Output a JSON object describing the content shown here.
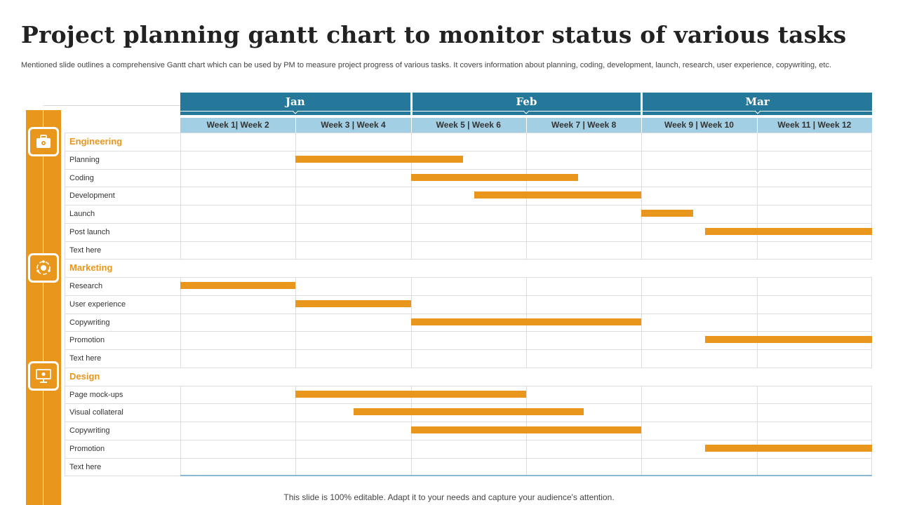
{
  "title": "Project planning gantt chart to monitor status of various tasks",
  "subtitle": "Mentioned slide outlines a comprehensive Gantt chart which can be used by PM to measure project progress of various tasks. It covers information about planning, coding, development, launch, research, user experience, copywriting, etc.",
  "footer": "This slide is 100% editable. Adapt it to your needs and capture your audience's attention.",
  "colors": {
    "accent": "#E9961D",
    "month_header": "#25789A",
    "week_header": "#A2CFE3"
  },
  "icons": [
    "briefcase-icon",
    "marketing-cycle-icon",
    "monitor-design-icon"
  ],
  "chart_data": {
    "type": "gantt",
    "months": [
      "Jan",
      "Feb",
      "Mar"
    ],
    "weeks": [
      "Week 1| Week 2",
      "Week 3 | Week 4",
      "Week 5 | Week 6",
      "Week 7 | Week 8",
      "Week 9 | Week 10",
      "Week 11 | Week 12"
    ],
    "week_range": [
      0,
      12
    ],
    "groups": [
      {
        "name": "Engineering",
        "tasks": [
          {
            "name": "Planning",
            "start": 2,
            "end": 4.9
          },
          {
            "name": "Coding",
            "start": 4,
            "end": 6.9
          },
          {
            "name": "Development",
            "start": 5.1,
            "end": 8
          },
          {
            "name": "Launch",
            "start": 8,
            "end": 8.9
          },
          {
            "name": "Post launch",
            "start": 9.1,
            "end": 12
          },
          {
            "name": "Text here",
            "start": null,
            "end": null
          }
        ]
      },
      {
        "name": "Marketing",
        "tasks": [
          {
            "name": "Research",
            "start": 0,
            "end": 2
          },
          {
            "name": "User experience",
            "start": 2,
            "end": 4
          },
          {
            "name": "Copywriting",
            "start": 4,
            "end": 8
          },
          {
            "name": "Promotion",
            "start": 9.1,
            "end": 12
          },
          {
            "name": "Text here",
            "start": null,
            "end": null
          }
        ]
      },
      {
        "name": "Design",
        "tasks": [
          {
            "name": "Page mock-ups",
            "start": 2,
            "end": 6
          },
          {
            "name": "Visual collateral",
            "start": 3,
            "end": 7
          },
          {
            "name": "Copywriting",
            "start": 4,
            "end": 8
          },
          {
            "name": "Promotion",
            "start": 9.1,
            "end": 12
          },
          {
            "name": "Text here",
            "start": null,
            "end": null
          }
        ]
      }
    ]
  }
}
